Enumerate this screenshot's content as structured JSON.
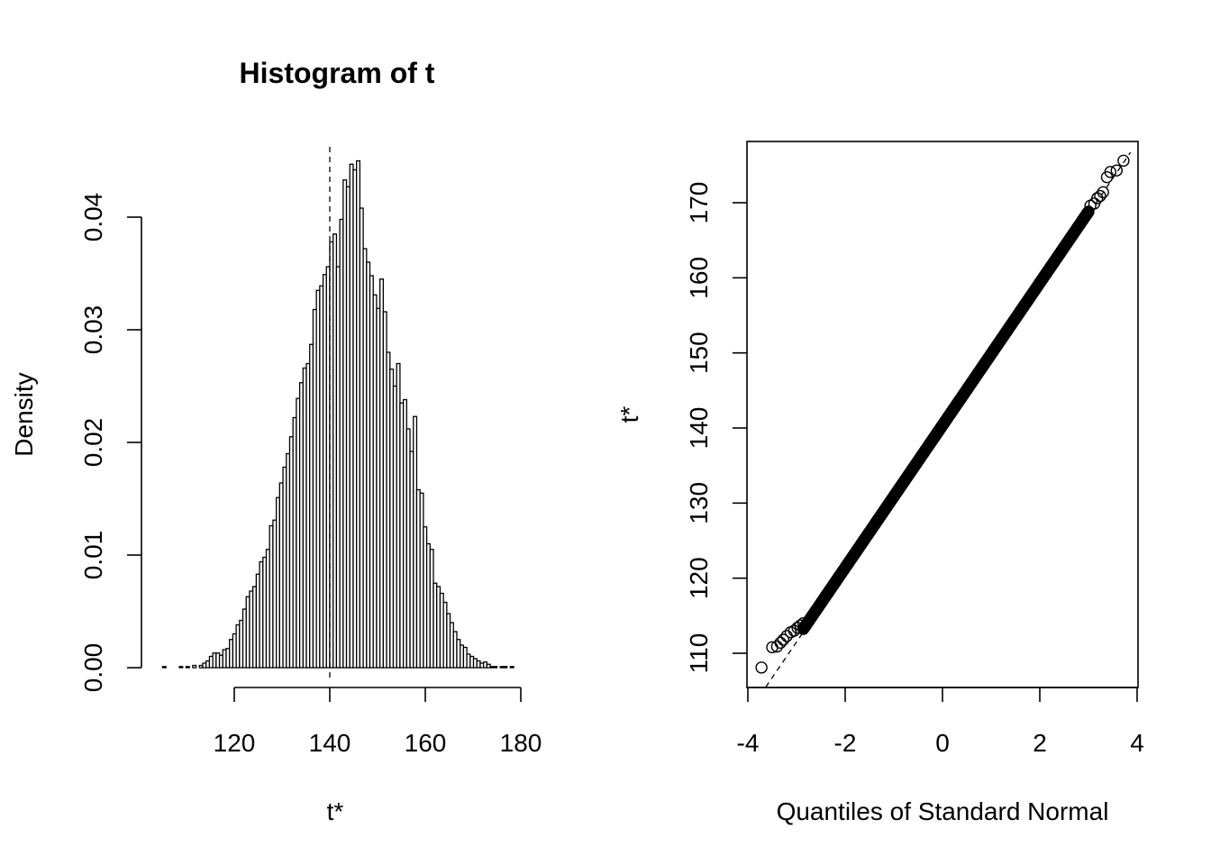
{
  "chart_data": [
    {
      "type": "bar",
      "title": "Histogram of t",
      "xlabel": "t*",
      "ylabel": "Density",
      "xlim": [
        100,
        180
      ],
      "ylim": [
        0,
        0.045
      ],
      "xticks": [
        "120",
        "140",
        "160",
        "180"
      ],
      "yticks": [
        "0.00",
        "0.01",
        "0.02",
        "0.03",
        "0.04"
      ],
      "reference_line_x": 140,
      "bin_start": 105,
      "bin_width": 0.7,
      "values": [
        0.0001,
        0,
        0,
        0,
        0,
        0.0001,
        0,
        0.0001,
        0,
        0.0002,
        0,
        0.0002,
        0.0004,
        0.0006,
        0.001,
        0.0013,
        0.0013,
        0.0011,
        0.0016,
        0.0017,
        0.0025,
        0.003,
        0.0038,
        0.0042,
        0.0052,
        0.0063,
        0.0068,
        0.0072,
        0.0083,
        0.0094,
        0.0098,
        0.0105,
        0.0126,
        0.0131,
        0.0151,
        0.0164,
        0.0178,
        0.019,
        0.0205,
        0.0222,
        0.0239,
        0.0253,
        0.0266,
        0.027,
        0.0287,
        0.0318,
        0.0335,
        0.0339,
        0.0349,
        0.0356,
        0.0378,
        0.0385,
        0.0356,
        0.0398,
        0.0433,
        0.0427,
        0.0447,
        0.0442,
        0.045,
        0.0408,
        0.0372,
        0.036,
        0.0348,
        0.0331,
        0.0319,
        0.0345,
        0.0316,
        0.028,
        0.0265,
        0.025,
        0.027,
        0.0235,
        0.0238,
        0.0212,
        0.0192,
        0.0223,
        0.0158,
        0.0155,
        0.0125,
        0.011,
        0.0105,
        0.0075,
        0.0072,
        0.0066,
        0.0058,
        0.0048,
        0.004,
        0.0032,
        0.0025,
        0.002,
        0.0018,
        0.0012,
        0.001,
        0.0008,
        0.0006,
        0.0004,
        0.0005,
        0.0003,
        0.0001,
        0.0001,
        0,
        0.0001,
        0.0001,
        0,
        0.0001
      ]
    },
    {
      "type": "scatter",
      "title": "",
      "xlabel": "Quantiles of Standard Normal",
      "ylabel": "t*",
      "xlim": [
        -4,
        4
      ],
      "ylim": [
        105.5,
        176.7
      ],
      "xticks": [
        "-4",
        "-2",
        "0",
        "2",
        "4"
      ],
      "yticks": [
        "110",
        "120",
        "130",
        "140",
        "150",
        "160",
        "170"
      ],
      "reference_line": {
        "intercept": 140,
        "slope": 9.5
      },
      "points": [
        [
          -3.72,
          108.1
        ],
        [
          -3.5,
          110.8
        ],
        [
          -3.4,
          110.9
        ],
        [
          -3.33,
          111.4
        ],
        [
          -3.27,
          111.8
        ],
        [
          -3.2,
          112.3
        ],
        [
          -3.12,
          112.8
        ],
        [
          -3.05,
          113.0
        ],
        [
          -2.98,
          113.4
        ],
        [
          -2.92,
          113.7
        ],
        [
          -2.86,
          114.0
        ],
        [
          3.04,
          169.6
        ],
        [
          3.12,
          169.9
        ],
        [
          3.18,
          170.6
        ],
        [
          3.24,
          170.9
        ],
        [
          3.3,
          171.4
        ],
        [
          3.38,
          173.4
        ],
        [
          3.45,
          174.1
        ],
        [
          3.58,
          174.3
        ],
        [
          3.72,
          175.6
        ]
      ],
      "dense_band": {
        "x_from": -2.86,
        "x_to": 3.0,
        "y_from": 114.0,
        "y_to": 169.4
      }
    }
  ]
}
